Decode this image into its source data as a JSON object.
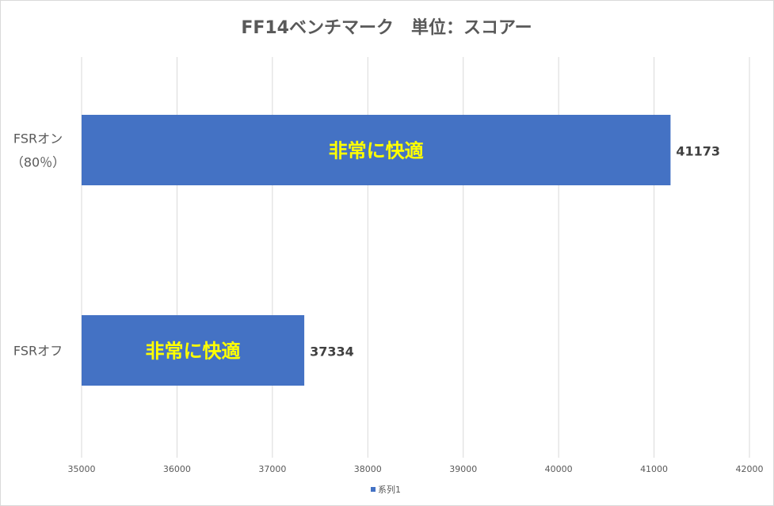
{
  "chart_data": {
    "type": "bar",
    "orientation": "horizontal",
    "title": "FF14ベンチマーク　単位：スコアー",
    "categories": [
      "FSRオン\n（80％）",
      "FSRオフ"
    ],
    "category_lines": [
      [
        "FSRオン",
        "（80％）"
      ],
      [
        "FSRオフ"
      ]
    ],
    "series": [
      {
        "name": "系列1",
        "values": [
          41173,
          37334
        ],
        "color": "#4472C4"
      }
    ],
    "bar_inner_labels": [
      "非常に快適",
      "非常に快適"
    ],
    "bar_inner_label_color": "#FFFF00",
    "xlim": [
      35000,
      42000
    ],
    "xticks": [
      35000,
      36000,
      37000,
      38000,
      39000,
      40000,
      41000,
      42000
    ],
    "grid": true,
    "legend": "bottom",
    "xlabel": "",
    "ylabel": ""
  }
}
